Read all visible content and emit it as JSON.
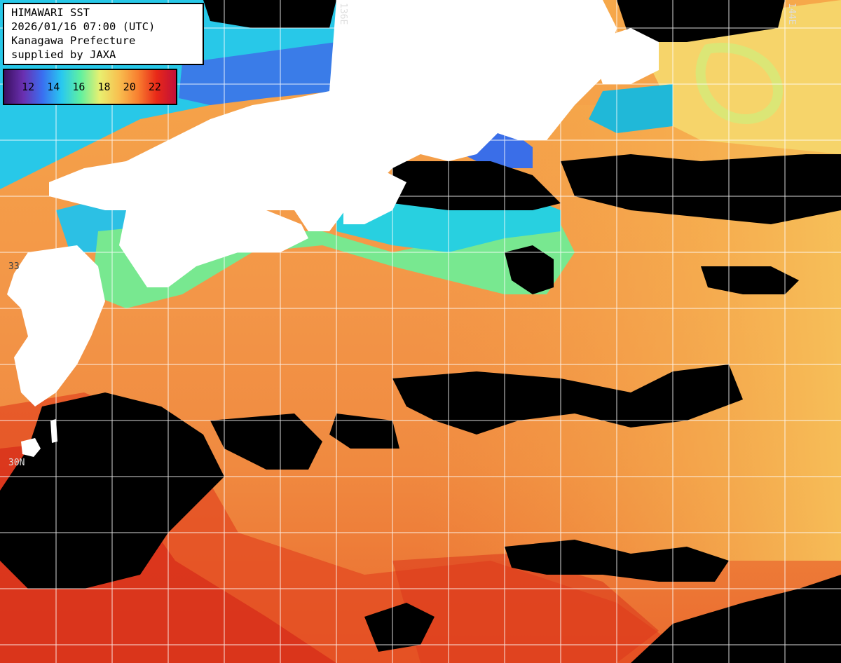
{
  "info": {
    "line1": "HIMAWARI SST",
    "line2": "2026/01/16 07:00 (UTC)",
    "line3": "Kanagawa Prefecture",
    "line4": "supplied by JAXA"
  },
  "legend": {
    "labels": [
      "12",
      "14",
      "16",
      "18",
      "20",
      "22"
    ],
    "gradient": [
      "#3a1060",
      "#6a2fb0",
      "#3a6ef0",
      "#28c8f0",
      "#60f0a0",
      "#e8f070",
      "#f8c050",
      "#f88030",
      "#e82818",
      "#c0103a"
    ]
  },
  "grid_labels": {
    "lon_136": "136E",
    "lon_144": "144E",
    "lat_30": "30N",
    "lat_33": "33"
  },
  "colors": {
    "land": "#ffffff",
    "no_data": "#000000",
    "grid": "#ffffff"
  }
}
